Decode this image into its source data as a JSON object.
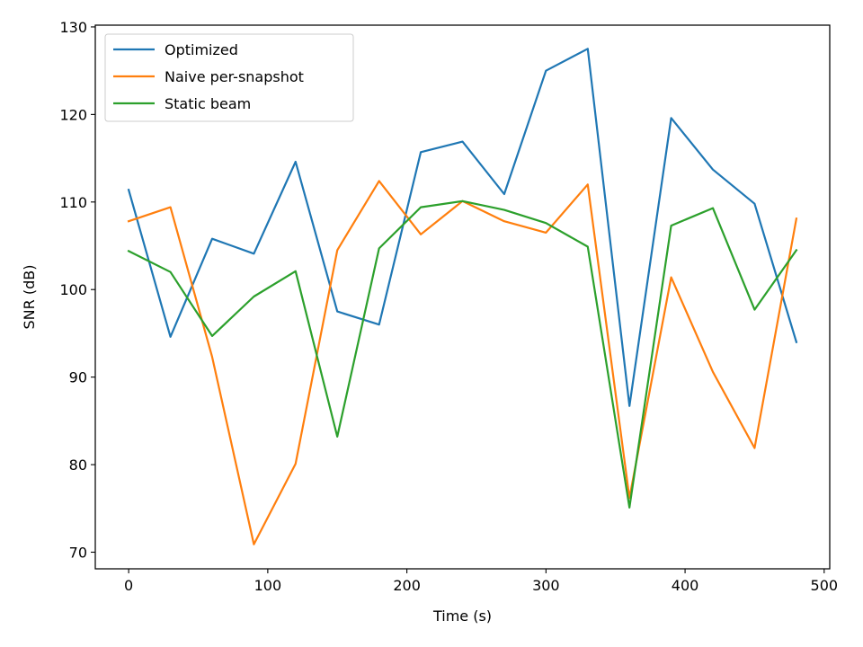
{
  "chart_data": {
    "type": "line",
    "title": "",
    "xlabel": "Time (s)",
    "ylabel": "SNR (dB)",
    "xlim": [
      -24,
      504
    ],
    "ylim": [
      68.1,
      130.2
    ],
    "xticks": [
      0,
      100,
      200,
      300,
      400,
      500
    ],
    "yticks": [
      70,
      80,
      90,
      100,
      110,
      120,
      130
    ],
    "grid": false,
    "legend_position": "top-left",
    "x": [
      0,
      30,
      60,
      90,
      120,
      150,
      180,
      210,
      240,
      270,
      300,
      330,
      360,
      390,
      420,
      450,
      480
    ],
    "series": [
      {
        "name": "Optimized",
        "color": "#1f77b4",
        "values": [
          111.4,
          94.6,
          105.8,
          104.1,
          114.6,
          97.5,
          96.0,
          115.7,
          116.9,
          110.9,
          125.0,
          127.5,
          86.7,
          119.6,
          113.7,
          109.8,
          94.0
        ]
      },
      {
        "name": "Naive per-snapshot",
        "color": "#ff7f0e",
        "values": [
          107.8,
          109.4,
          92.3,
          70.9,
          80.1,
          104.5,
          112.4,
          106.3,
          110.1,
          107.8,
          106.5,
          112.0,
          76.2,
          101.4,
          90.6,
          81.9,
          108.1
        ]
      },
      {
        "name": "Static beam",
        "color": "#2ca02c",
        "values": [
          104.4,
          102.0,
          94.7,
          99.2,
          102.1,
          83.2,
          104.7,
          109.4,
          110.1,
          109.1,
          107.6,
          104.9,
          75.1,
          107.3,
          109.3,
          97.7,
          104.5
        ]
      }
    ]
  }
}
